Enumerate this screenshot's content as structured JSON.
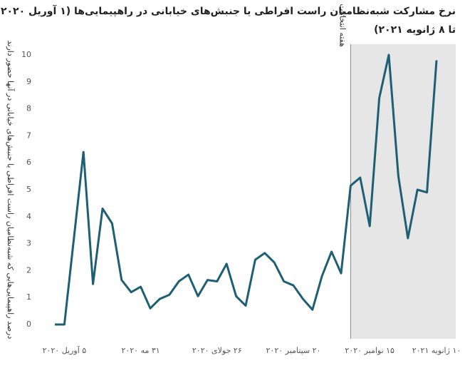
{
  "chart_data": {
    "type": "line",
    "title_lines": [
      "نرخ مشارکت شبه‌نظامیان راست افراطی یا جنبش‌های خیابانی در راهپیمایی‌ها (۱ آوریل ۲۰۲۰",
      "تا ۸ ژانویه ۲۰۲۱)"
    ],
    "y_label": "درصد راهپیمایی‌هایی که شبه‌نظامیان راست افراطی یا جنبش‌های خیابانی در آنها حضور دارند",
    "categories": [
      null,
      "۵ آوریل ۲۰۲۰",
      null,
      null,
      null,
      null,
      null,
      null,
      null,
      "۳۱ مه ۲۰۲۰",
      null,
      null,
      null,
      null,
      null,
      null,
      null,
      "۲۶ جولای ۲۰۲۰",
      null,
      null,
      null,
      null,
      null,
      null,
      null,
      "۲۰ سپتامبر ۲۰۲۰",
      null,
      null,
      null,
      null,
      null,
      null,
      null,
      "۱۵ نوامبر ۲۰۲۰",
      null,
      null,
      null,
      null,
      null,
      null,
      null,
      "۱۰ ژانویه ۲۰۲۱"
    ],
    "series": [
      {
        "name": null,
        "color": "#1f5f73",
        "values": [
          0,
          0,
          3.2,
          6.4,
          1.5,
          4.3,
          3.75,
          1.65,
          1.2,
          1.4,
          0.6,
          0.95,
          1.1,
          1.6,
          1.85,
          1.05,
          1.65,
          1.6,
          2.25,
          1.05,
          0.7,
          2.4,
          2.65,
          2.3,
          1.6,
          1.45,
          0.95,
          0.55,
          1.8,
          2.7,
          1.9,
          5.15,
          5.45,
          3.65,
          8.4,
          10,
          5.5,
          3.2,
          5.0,
          4.9,
          9.8,
          null
        ]
      }
    ],
    "ylim": [
      0,
      10
    ],
    "yticks": [
      0,
      1,
      2,
      3,
      4,
      5,
      6,
      7,
      8,
      9,
      10
    ],
    "grid": false,
    "highlight": {
      "label": "هفته انتخابات",
      "from_category": 31,
      "color": "#e6e6e6"
    }
  }
}
